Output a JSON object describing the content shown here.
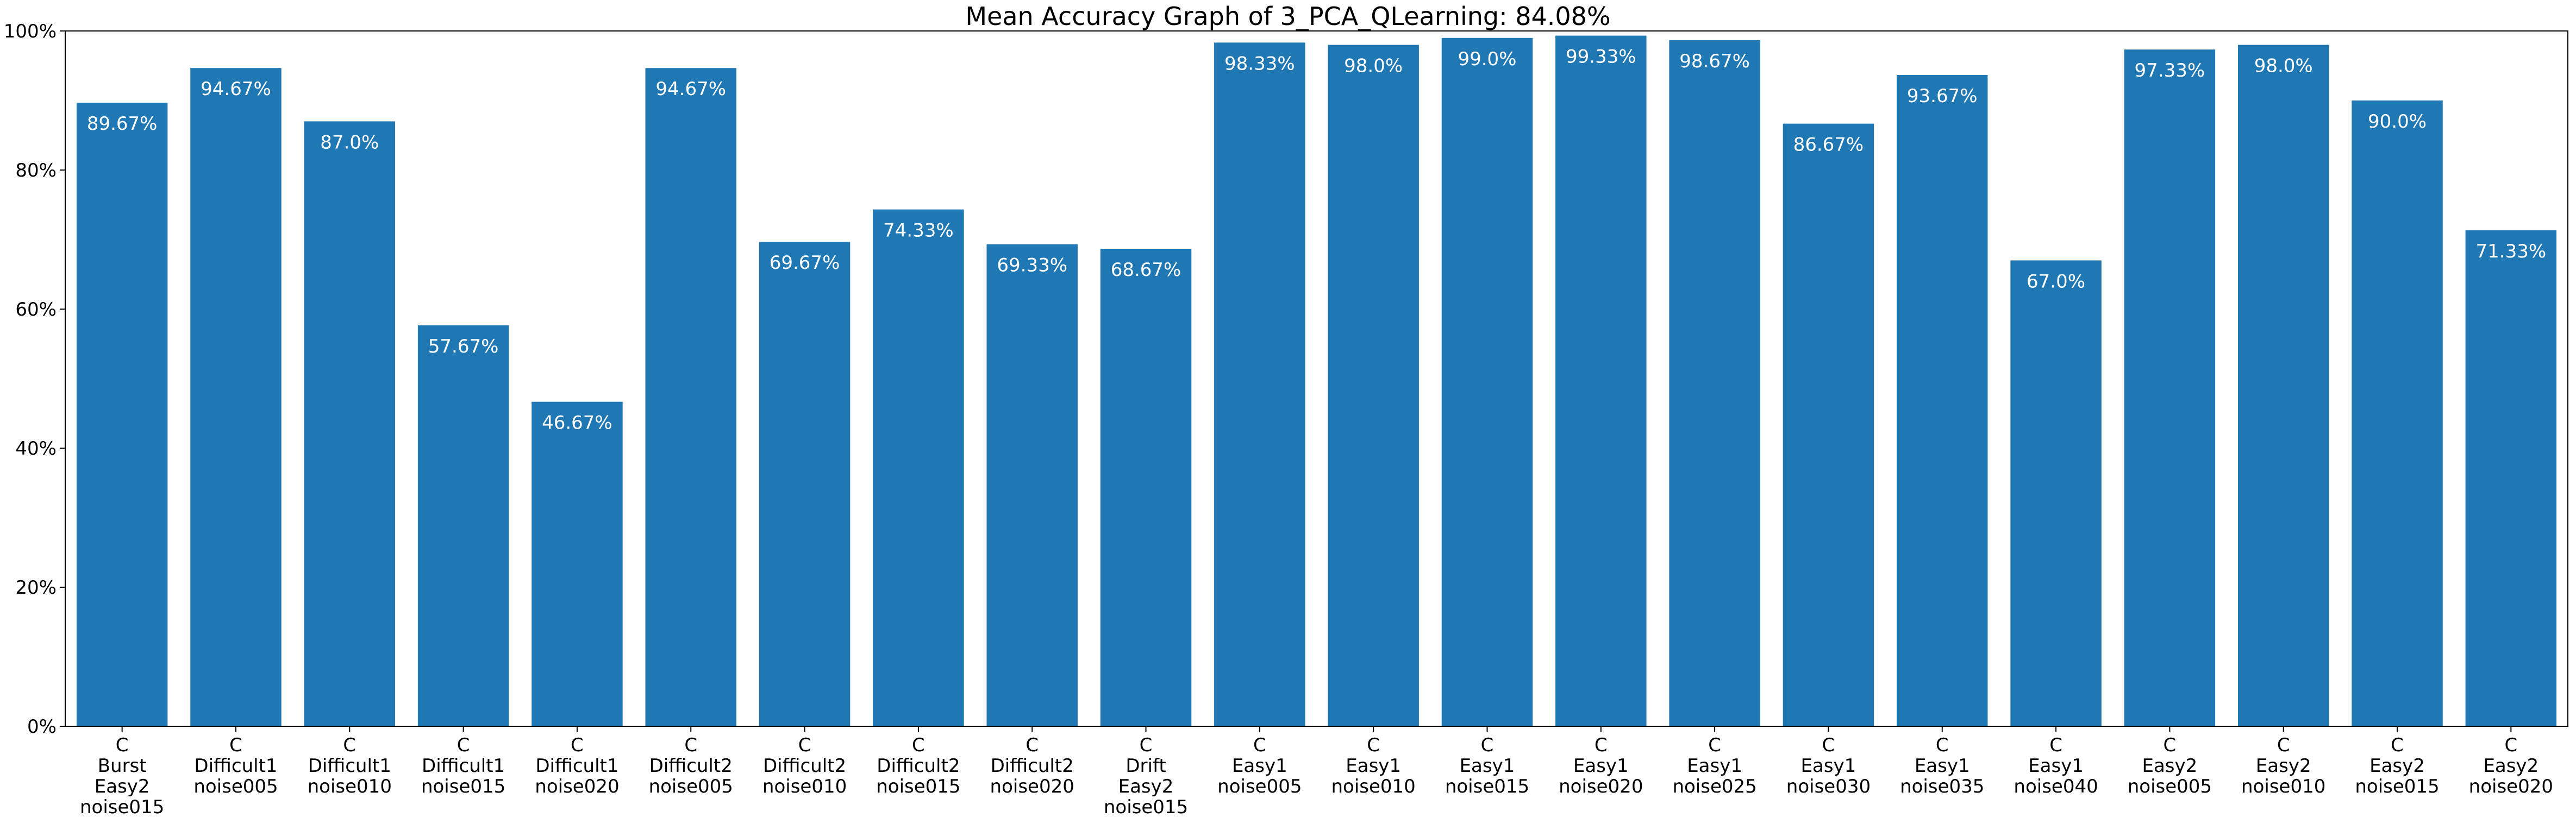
{
  "chart_data": {
    "type": "bar",
    "title": "Mean Accuracy Graph of 3_PCA_QLearning: 84.08%",
    "xlabel": "",
    "ylabel": "",
    "ylim": [
      0,
      100
    ],
    "y_ticks": [
      "0%",
      "20%",
      "40%",
      "60%",
      "80%",
      "100%"
    ],
    "grid": false,
    "bar_color": "#1f77b4",
    "categories": [
      [
        "C",
        "Burst",
        "Easy2",
        "noise015"
      ],
      [
        "C",
        "Difficult1",
        "noise005"
      ],
      [
        "C",
        "Difficult1",
        "noise010"
      ],
      [
        "C",
        "Difficult1",
        "noise015"
      ],
      [
        "C",
        "Difficult1",
        "noise020"
      ],
      [
        "C",
        "Difficult2",
        "noise005"
      ],
      [
        "C",
        "Difficult2",
        "noise010"
      ],
      [
        "C",
        "Difficult2",
        "noise015"
      ],
      [
        "C",
        "Difficult2",
        "noise020"
      ],
      [
        "C",
        "Drift",
        "Easy2",
        "noise015"
      ],
      [
        "C",
        "Easy1",
        "noise005"
      ],
      [
        "C",
        "Easy1",
        "noise010"
      ],
      [
        "C",
        "Easy1",
        "noise015"
      ],
      [
        "C",
        "Easy1",
        "noise020"
      ],
      [
        "C",
        "Easy1",
        "noise025"
      ],
      [
        "C",
        "Easy1",
        "noise030"
      ],
      [
        "C",
        "Easy1",
        "noise035"
      ],
      [
        "C",
        "Easy1",
        "noise040"
      ],
      [
        "C",
        "Easy2",
        "noise005"
      ],
      [
        "C",
        "Easy2",
        "noise010"
      ],
      [
        "C",
        "Easy2",
        "noise015"
      ],
      [
        "C",
        "Easy2",
        "noise020"
      ]
    ],
    "values": [
      89.67,
      94.67,
      87.0,
      57.67,
      46.67,
      94.67,
      69.67,
      74.33,
      69.33,
      68.67,
      98.33,
      98.0,
      99.0,
      99.33,
      98.67,
      86.67,
      93.67,
      67.0,
      97.33,
      98.0,
      90.0,
      71.33
    ],
    "data_labels": [
      "89.67%",
      "94.67%",
      "87.0%",
      "57.67%",
      "46.67%",
      "94.67%",
      "69.67%",
      "74.33%",
      "69.33%",
      "68.67%",
      "98.33%",
      "98.0%",
      "99.0%",
      "99.33%",
      "98.67%",
      "86.67%",
      "93.67%",
      "67.0%",
      "97.33%",
      "98.0%",
      "90.0%",
      "71.33%"
    ]
  }
}
